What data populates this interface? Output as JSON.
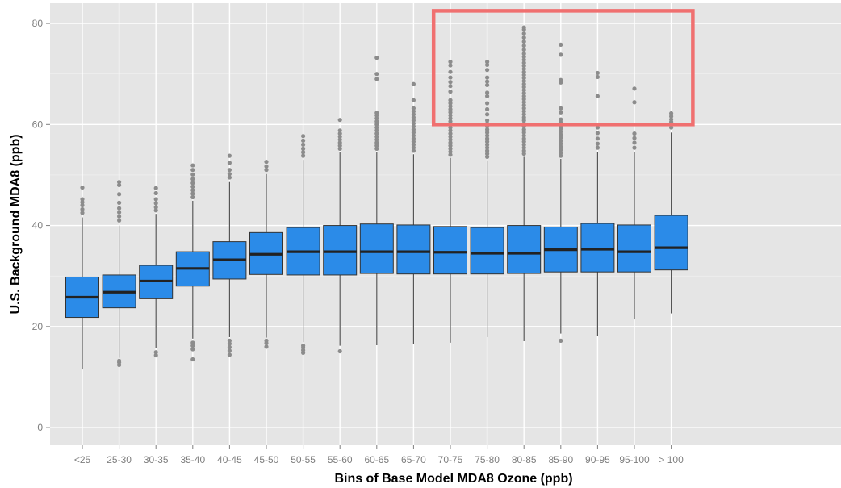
{
  "chart_data": {
    "type": "box",
    "title": "",
    "xlabel": "Bins of Base Model MDA8 Ozone (ppb)",
    "ylabel": "U.S. Background MDA8 (ppb)",
    "ylim": [
      -3.5,
      84
    ],
    "yticks": [
      0,
      20,
      40,
      60,
      80
    ],
    "grid": true,
    "categories": [
      "<25",
      "25-30",
      "30-35",
      "35-40",
      "40-45",
      "45-50",
      "50-55",
      "55-60",
      "60-65",
      "65-70",
      "70-75",
      "75-80",
      "80-85",
      "85-90",
      "90-95",
      "95-100",
      "> 100"
    ],
    "boxes": [
      {
        "category": "<25",
        "whisker_low": 11.5,
        "q1": 21.8,
        "median": 25.8,
        "q3": 29.8,
        "whisker_high": 41.6,
        "outliers": [
          42.5,
          43.2,
          44.0,
          44.6,
          45.2,
          47.5
        ]
      },
      {
        "category": "25-30",
        "whisker_low": 13.8,
        "q1": 23.7,
        "median": 26.8,
        "q3": 30.2,
        "whisker_high": 40.0,
        "outliers": [
          12.4,
          12.9,
          13.2,
          41.0,
          41.8,
          42.6,
          43.4,
          44.5,
          46.2,
          48.0,
          48.6
        ]
      },
      {
        "category": "30-35",
        "whisker_low": 15.7,
        "q1": 25.5,
        "median": 29.0,
        "q3": 32.1,
        "whisker_high": 42.3,
        "outliers": [
          14.3,
          14.9,
          43.0,
          43.6,
          44.4,
          45.2,
          46.4,
          47.4
        ]
      },
      {
        "category": "35-40",
        "whisker_low": 17.6,
        "q1": 28.0,
        "median": 31.5,
        "q3": 34.8,
        "whisker_high": 44.9,
        "outliers": [
          13.5,
          15.5,
          16.2,
          16.8,
          45.6,
          46.3,
          47.0,
          47.7,
          48.4,
          49.2,
          50.1,
          51.0,
          51.9
        ]
      },
      {
        "category": "40-45",
        "whisker_low": 17.9,
        "q1": 29.4,
        "median": 33.2,
        "q3": 36.8,
        "whisker_high": 48.6,
        "outliers": [
          14.4,
          15.2,
          15.9,
          16.6,
          17.2,
          49.5,
          50.2,
          51.0,
          52.4,
          53.8
        ]
      },
      {
        "category": "45-50",
        "whisker_low": 17.8,
        "q1": 30.3,
        "median": 34.3,
        "q3": 38.6,
        "whisker_high": 50.2,
        "outliers": [
          16.0,
          16.7,
          17.2,
          51.0,
          51.7,
          52.6
        ]
      },
      {
        "category": "50-55",
        "whisker_low": 16.9,
        "q1": 30.2,
        "median": 34.8,
        "q3": 39.6,
        "whisker_high": 53.0,
        "outliers": [
          14.8,
          15.3,
          15.8,
          16.2,
          53.8,
          54.5,
          55.2,
          56.0,
          56.8,
          57.7
        ]
      },
      {
        "category": "55-60",
        "whisker_low": 16.2,
        "q1": 30.2,
        "median": 34.8,
        "q3": 40.0,
        "whisker_high": 54.5,
        "outliers": [
          15.1,
          55.2,
          55.8,
          56.4,
          57.0,
          57.6,
          58.2,
          58.8,
          60.9
        ]
      },
      {
        "category": "60-65",
        "whisker_low": 16.3,
        "q1": 30.5,
        "median": 34.8,
        "q3": 40.3,
        "whisker_high": 54.6,
        "outliers": [
          55.2,
          55.8,
          56.4,
          57.0,
          57.6,
          58.2,
          58.8,
          59.4,
          60.0,
          60.6,
          61.2,
          61.8,
          62.3,
          69.0,
          70.0,
          73.2
        ]
      },
      {
        "category": "65-70",
        "whisker_low": 16.5,
        "q1": 30.4,
        "median": 34.8,
        "q3": 40.1,
        "whisker_high": 54.1,
        "outliers": [
          54.8,
          55.4,
          56.0,
          56.6,
          57.2,
          57.8,
          58.4,
          59.0,
          59.6,
          60.2,
          60.8,
          61.4,
          62.0,
          62.6,
          63.2,
          64.8,
          68.0
        ]
      },
      {
        "category": "70-75",
        "whisker_low": 16.8,
        "q1": 30.4,
        "median": 34.7,
        "q3": 39.8,
        "whisker_high": 53.4,
        "outliers": [
          54.0,
          54.6,
          55.2,
          55.8,
          56.4,
          57.0,
          57.6,
          58.2,
          58.8,
          59.4,
          60.0,
          60.6,
          61.2,
          61.8,
          62.4,
          63.0,
          63.6,
          64.2,
          64.8,
          66.5,
          67.6,
          68.4,
          69.3,
          70.4,
          71.7,
          72.4
        ]
      },
      {
        "category": "75-80",
        "whisker_low": 17.9,
        "q1": 30.4,
        "median": 34.5,
        "q3": 39.6,
        "whisker_high": 52.9,
        "outliers": [
          53.6,
          54.2,
          54.8,
          55.4,
          56.0,
          56.6,
          57.2,
          57.8,
          58.4,
          59.0,
          59.6,
          60.2,
          60.8,
          62.0,
          63.0,
          64.2,
          65.6,
          66.3,
          67.8,
          68.5,
          69.3,
          70.8,
          71.8,
          72.4
        ]
      },
      {
        "category": "80-85",
        "whisker_low": 17.1,
        "q1": 30.5,
        "median": 34.5,
        "q3": 40.0,
        "whisker_high": 53.6,
        "outliers": [
          54.2,
          54.8,
          55.4,
          56.0,
          56.6,
          57.2,
          57.8,
          58.4,
          59.0,
          59.6,
          60.2,
          60.8,
          61.4,
          62.0,
          62.6,
          63.2,
          63.8,
          64.4,
          65.0,
          65.6,
          66.2,
          66.8,
          67.4,
          68.0,
          68.6,
          69.2,
          69.8,
          70.4,
          71.0,
          71.6,
          72.2,
          72.8,
          73.4,
          74.0,
          74.8,
          75.6,
          76.4,
          77.2,
          78.0,
          78.8,
          79.2
        ]
      },
      {
        "category": "85-90",
        "whisker_low": 18.6,
        "q1": 30.8,
        "median": 35.2,
        "q3": 39.7,
        "whisker_high": 53.2,
        "outliers": [
          17.2,
          53.8,
          54.4,
          55.0,
          55.6,
          56.2,
          56.8,
          57.4,
          58.0,
          58.6,
          59.2,
          59.8,
          60.4,
          61.0,
          62.4,
          63.2,
          68.3,
          68.8,
          73.8,
          75.8
        ]
      },
      {
        "category": "90-95",
        "whisker_low": 18.2,
        "q1": 30.8,
        "median": 35.3,
        "q3": 40.4,
        "whisker_high": 54.6,
        "outliers": [
          55.4,
          56.2,
          57.2,
          58.3,
          59.4,
          65.6,
          69.4,
          70.2
        ]
      },
      {
        "category": "95-100",
        "whisker_low": 21.4,
        "q1": 30.8,
        "median": 34.8,
        "q3": 40.1,
        "whisker_high": 54.5,
        "outliers": [
          55.4,
          56.4,
          57.3,
          58.2,
          64.4,
          67.1
        ]
      },
      {
        "category": "> 100",
        "whisker_low": 22.6,
        "q1": 31.2,
        "median": 35.6,
        "q3": 42.0,
        "whisker_high": 58.4,
        "outliers": [
          59.4,
          59.9,
          60.5,
          61.0,
          61.6,
          62.2
        ]
      }
    ],
    "annotation": {
      "type": "rectangle",
      "x_from": "70-75",
      "x_to": "> 100",
      "y_from": 60,
      "y_to": 82.5,
      "color": "#f07070"
    }
  },
  "colors": {
    "box_fill": "#2b8be8",
    "box_stroke": "#333333",
    "median": "#222222",
    "whisker": "#555555",
    "outlier": "#8c8c8c",
    "panel": "#e5e5e5",
    "grid": "#ffffff",
    "annotation": "#f07070"
  }
}
